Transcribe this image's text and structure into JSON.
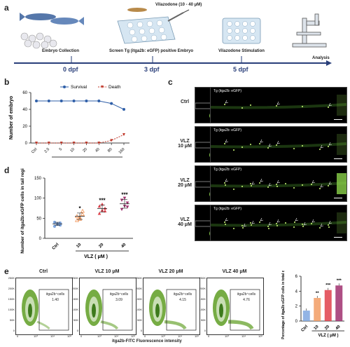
{
  "panel_a": {
    "letter": "a",
    "drug_label": "Vilazodone (10 - 40 μM)",
    "steps": [
      "Embryo Collection",
      "Screen Tg (itga2b: eGFP) positive Embryo",
      "Vilazodone Stimulation",
      "Analysis"
    ],
    "timepoints": [
      "0 dpf",
      "3 dpf",
      "5 dpf"
    ]
  },
  "panel_b": {
    "letter": "b",
    "legend": [
      "Survival",
      "Death"
    ]
  },
  "panel_c": {
    "letter": "c",
    "rows": [
      "Ctrl",
      "VLZ\n10 μM",
      "VLZ\n20 μM",
      "VLZ\n40 μM"
    ],
    "image_label": "Tg (itga2b: eGFP)"
  },
  "panel_d": {
    "letter": "d"
  },
  "panel_e": {
    "letter": "e",
    "plots": [
      {
        "title": "Ctrl",
        "gate_label": "itga2b⁺cells",
        "value": "1.40"
      },
      {
        "title": "VLZ 10 μM",
        "gate_label": "itga2b⁺cells",
        "value": "3.09"
      },
      {
        "title": "VLZ 20 μM",
        "gate_label": "itga2b⁺cells",
        "value": "4.15"
      },
      {
        "title": "VLZ 40 μM",
        "gate_label": "itga2b⁺cells",
        "value": "4.76"
      }
    ],
    "flow_y_ticks": [
      "250K",
      "200K",
      "150K",
      "100K",
      "50K",
      "0"
    ],
    "flow_x_ticks": [
      "0",
      "10³",
      "10⁴",
      "10⁵"
    ],
    "flow_xlabel": "itga2b-FITC  Fluorescence intensity"
  },
  "chart_data": [
    {
      "type": "line",
      "panel": "b",
      "ylabel": "Number of embryo",
      "xlabel": "VLZ ( μM )",
      "categories": [
        "Ctrl",
        "2.5",
        "5",
        "10",
        "20",
        "40",
        "80",
        "160"
      ],
      "ylim": [
        0,
        60
      ],
      "yticks": [
        0,
        20,
        40,
        60
      ],
      "legend_position": "top-right",
      "series": [
        {
          "name": "Survival",
          "color": "#2f5fa8",
          "values": [
            50,
            50,
            50,
            50,
            50,
            50,
            47,
            40
          ]
        },
        {
          "name": "Death",
          "color": "#c0392b",
          "values": [
            0,
            0,
            0,
            0,
            0,
            0,
            3,
            10
          ]
        }
      ]
    },
    {
      "type": "scatter",
      "panel": "d",
      "ylabel": "Number of itga2b:eGFP cells in tail region",
      "xlabel": "VLZ ( μM )",
      "categories": [
        "Ctrl",
        "10",
        "20",
        "40"
      ],
      "ylim": [
        0,
        150
      ],
      "yticks": [
        0,
        50,
        100,
        150
      ],
      "significance": [
        "",
        "*",
        "***",
        "***"
      ],
      "colors": [
        "#7fa7e0",
        "#f29c63",
        "#e0404a",
        "#a0306e"
      ],
      "groups": [
        {
          "name": "Ctrl",
          "points": [
            30,
            35,
            38,
            40,
            36,
            33
          ],
          "mean": 36,
          "sd": 4
        },
        {
          "name": "10",
          "points": [
            45,
            52,
            60,
            55,
            48,
            68
          ],
          "mean": 55,
          "sd": 8
        },
        {
          "name": "20",
          "points": [
            62,
            70,
            75,
            80,
            85,
            68
          ],
          "mean": 74,
          "sd": 9
        },
        {
          "name": "40",
          "points": [
            72,
            80,
            88,
            95,
            100,
            78
          ],
          "mean": 86,
          "sd": 11
        }
      ]
    },
    {
      "type": "bar",
      "panel": "e",
      "ylabel": "Percentage of itga2b:eGFP cells in total cells (%)",
      "xlabel": "VLZ ( μM )",
      "categories": [
        "Ctrl",
        "10",
        "20",
        "40"
      ],
      "values": [
        1.4,
        3.09,
        4.15,
        4.76
      ],
      "ylim": [
        0,
        6
      ],
      "yticks": [
        0,
        2,
        4,
        6
      ],
      "significance": [
        "",
        "**",
        "***",
        "***"
      ],
      "colors": [
        "#7fa7e0",
        "#f29c63",
        "#e0404a",
        "#a0306e"
      ]
    }
  ]
}
